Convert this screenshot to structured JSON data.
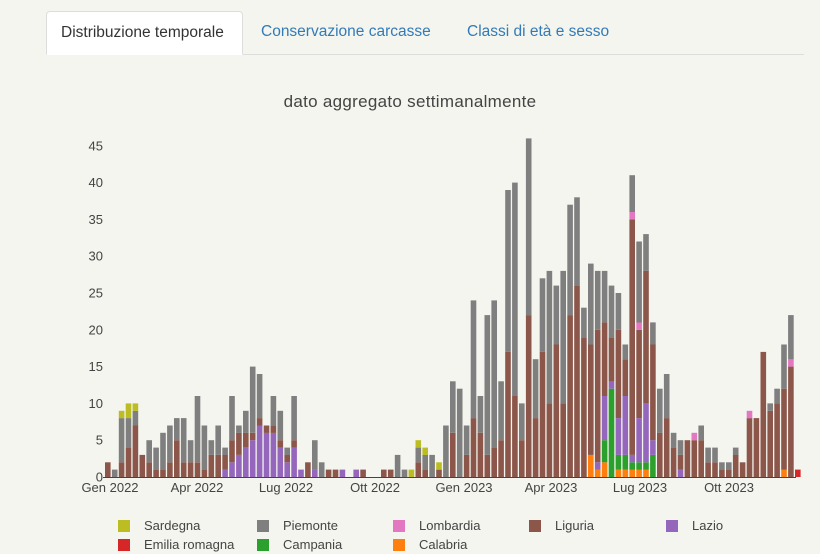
{
  "tabs": [
    {
      "label": "Distribuzione temporale",
      "active": true
    },
    {
      "label": "Conservazione carcasse",
      "active": false
    },
    {
      "label": "Classi di età e sesso",
      "active": false
    }
  ],
  "chart_data": {
    "type": "bar",
    "stacked": true,
    "title": "dato aggregato settimanalmente",
    "xlabel": "",
    "ylabel": "",
    "ylim": [
      0,
      47
    ],
    "yticks": [
      0,
      5,
      10,
      15,
      20,
      25,
      30,
      35,
      40,
      45
    ],
    "xtick_labels": [
      "Gen 2022",
      "Apr 2022",
      "Lug 2022",
      "Ott 2022",
      "Gen 2023",
      "Apr 2023",
      "Lug 2023",
      "Ott 2023"
    ],
    "grid": false,
    "legend_position": "bottom",
    "colors": {
      "Sardegna": "#bcbd22",
      "Piemonte": "#7f7f7f",
      "Lombardia": "#e377c2",
      "Liguria": "#8c564b",
      "Lazio": "#9467bd",
      "Emilia romagna": "#d62728",
      "Campania": "#2ca02c",
      "Calabria": "#ff7f0e"
    },
    "legend_order": [
      "Sardegna",
      "Piemonte",
      "Lombardia",
      "Liguria",
      "Lazio",
      "Emilia romagna",
      "Campania",
      "Calabria"
    ],
    "stack_order": [
      "Emilia romagna",
      "Calabria",
      "Campania",
      "Lazio",
      "Liguria",
      "Lombardia",
      "Piemonte",
      "Sardegna"
    ],
    "weeks": [
      {
        "Liguria": 2
      },
      {
        "Piemonte": 1
      },
      {
        "Liguria": 2,
        "Piemonte": 6,
        "Sardegna": 1
      },
      {
        "Liguria": 4,
        "Piemonte": 4,
        "Sardegna": 2
      },
      {
        "Liguria": 7,
        "Piemonte": 2,
        "Sardegna": 1
      },
      {
        "Liguria": 3
      },
      {
        "Liguria": 2,
        "Piemonte": 3
      },
      {
        "Liguria": 1,
        "Piemonte": 3
      },
      {
        "Liguria": 1,
        "Piemonte": 5
      },
      {
        "Liguria": 2,
        "Piemonte": 5
      },
      {
        "Liguria": 5,
        "Piemonte": 3
      },
      {
        "Liguria": 2,
        "Piemonte": 6
      },
      {
        "Liguria": 2,
        "Piemonte": 3
      },
      {
        "Liguria": 2,
        "Piemonte": 9
      },
      {
        "Liguria": 1,
        "Piemonte": 6
      },
      {
        "Liguria": 3,
        "Piemonte": 2
      },
      {
        "Liguria": 3,
        "Piemonte": 4
      },
      {
        "Lazio": 1,
        "Liguria": 2,
        "Piemonte": 1
      },
      {
        "Lazio": 2,
        "Liguria": 3,
        "Piemonte": 6
      },
      {
        "Lazio": 3,
        "Liguria": 3,
        "Piemonte": 1
      },
      {
        "Lazio": 4,
        "Liguria": 2,
        "Piemonte": 3
      },
      {
        "Lazio": 5,
        "Liguria": 1,
        "Piemonte": 9
      },
      {
        "Lazio": 7,
        "Liguria": 1,
        "Piemonte": 6
      },
      {
        "Lazio": 6,
        "Liguria": 1,
        "Piemonte": 0
      },
      {
        "Lazio": 6,
        "Liguria": 1,
        "Piemonte": 4
      },
      {
        "Lazio": 4,
        "Liguria": 1,
        "Piemonte": 4
      },
      {
        "Lazio": 2,
        "Liguria": 1,
        "Piemonte": 1
      },
      {
        "Lazio": 4,
        "Liguria": 1,
        "Piemonte": 6
      },
      {
        "Lazio": 1
      },
      {
        "Liguria": 2
      },
      {
        "Lazio": 1,
        "Piemonte": 4
      },
      {
        "Piemonte": 2
      },
      {
        "Liguria": 1
      },
      {
        "Liguria": 1
      },
      {
        "Lazio": 1
      },
      {},
      {
        "Lazio": 1
      },
      {
        "Liguria": 1
      },
      {},
      {},
      {
        "Liguria": 1
      },
      {
        "Liguria": 1
      },
      {
        "Piemonte": 3
      },
      {
        "Piemonte": 1
      },
      {
        "Sardegna": 1
      },
      {
        "Liguria": 2,
        "Piemonte": 2,
        "Sardegna": 1
      },
      {
        "Liguria": 1,
        "Piemonte": 2,
        "Sardegna": 1
      },
      {
        "Piemonte": 3
      },
      {
        "Liguria": 1,
        "Sardegna": 1
      },
      {
        "Piemonte": 7
      },
      {
        "Liguria": 6,
        "Piemonte": 7
      },
      {
        "Piemonte": 12
      },
      {
        "Liguria": 3,
        "Piemonte": 4
      },
      {
        "Liguria": 8,
        "Piemonte": 16
      },
      {
        "Liguria": 6,
        "Piemonte": 5
      },
      {
        "Liguria": 3,
        "Piemonte": 19
      },
      {
        "Liguria": 4,
        "Piemonte": 20
      },
      {
        "Liguria": 5,
        "Piemonte": 8
      },
      {
        "Liguria": 17,
        "Piemonte": 22
      },
      {
        "Liguria": 11,
        "Piemonte": 29
      },
      {
        "Liguria": 5,
        "Piemonte": 5
      },
      {
        "Liguria": 22,
        "Piemonte": 24
      },
      {
        "Liguria": 8,
        "Piemonte": 8
      },
      {
        "Liguria": 17,
        "Piemonte": 10
      },
      {
        "Liguria": 10,
        "Piemonte": 18
      },
      {
        "Liguria": 18,
        "Piemonte": 8
      },
      {
        "Liguria": 10,
        "Piemonte": 18
      },
      {
        "Liguria": 22,
        "Piemonte": 15
      },
      {
        "Liguria": 26,
        "Piemonte": 12
      },
      {
        "Liguria": 19,
        "Piemonte": 4
      },
      {
        "Calabria": 3,
        "Liguria": 15,
        "Piemonte": 11
      },
      {
        "Calabria": 1,
        "Lazio": 1,
        "Liguria": 18,
        "Piemonte": 8
      },
      {
        "Calabria": 2,
        "Campania": 3,
        "Lazio": 6,
        "Liguria": 10,
        "Piemonte": 7
      },
      {
        "Campania": 12,
        "Lombardia": 0,
        "Lazio": 1,
        "Liguria": 6,
        "Piemonte": 7
      },
      {
        "Calabria": 1,
        "Campania": 2,
        "Lazio": 5,
        "Liguria": 12,
        "Piemonte": 5
      },
      {
        "Calabria": 1,
        "Campania": 2,
        "Lazio": 8,
        "Liguria": 5,
        "Piemonte": 2
      },
      {
        "Calabria": 1,
        "Campania": 1,
        "Lazio": 1,
        "Liguria": 32,
        "Lombardia": 1,
        "Piemonte": 5
      },
      {
        "Calabria": 1,
        "Campania": 1,
        "Lazio": 6,
        "Liguria": 12,
        "Lombardia": 1,
        "Piemonte": 11
      },
      {
        "Calabria": 1,
        "Campania": 1,
        "Lazio": 8,
        "Liguria": 18,
        "Piemonte": 5
      },
      {
        "Campania": 3,
        "Lazio": 2,
        "Liguria": 13,
        "Piemonte": 3
      },
      {
        "Liguria": 6,
        "Piemonte": 6
      },
      {
        "Liguria": 8,
        "Piemonte": 6
      },
      {
        "Liguria": 4,
        "Piemonte": 2
      },
      {
        "Lazio": 1,
        "Liguria": 2,
        "Piemonte": 2
      },
      {
        "Liguria": 5
      },
      {
        "Liguria": 5,
        "Lombardia": 1
      },
      {
        "Liguria": 5,
        "Piemonte": 2
      },
      {
        "Liguria": 2,
        "Piemonte": 2
      },
      {
        "Liguria": 2,
        "Piemonte": 2
      },
      {
        "Liguria": 1,
        "Piemonte": 1
      },
      {
        "Liguria": 1,
        "Piemonte": 1
      },
      {
        "Liguria": 3,
        "Piemonte": 1
      },
      {
        "Liguria": 2
      },
      {
        "Liguria": 8,
        "Lombardia": 1
      },
      {
        "Liguria": 8
      },
      {
        "Liguria": 17
      },
      {
        "Liguria": 9,
        "Piemonte": 1
      },
      {
        "Liguria": 10,
        "Piemonte": 2
      },
      {
        "Calabria": 1,
        "Liguria": 11,
        "Piemonte": 6
      },
      {
        "Liguria": 15,
        "Lombardia": 1,
        "Piemonte": 6
      },
      {
        "Emilia romagna": 1
      }
    ]
  }
}
